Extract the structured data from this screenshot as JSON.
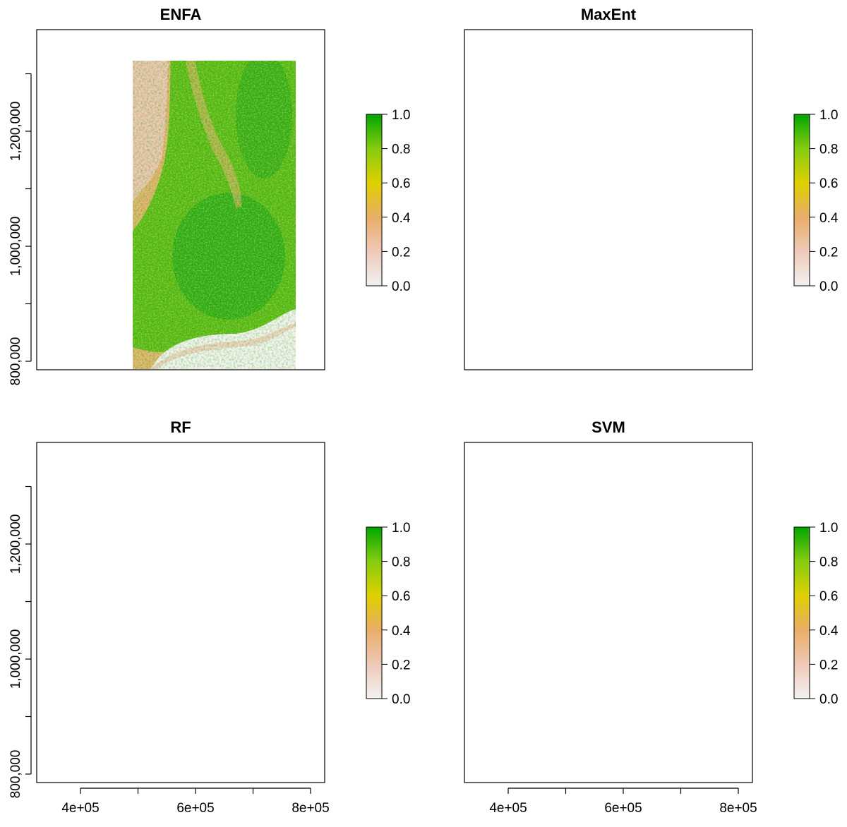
{
  "panels": [
    {
      "title": "ENFA",
      "palette": "enfa",
      "show_y_axis": true,
      "show_x_axis": false
    },
    {
      "title": "MaxEnt",
      "palette": "maxent",
      "show_y_axis": false,
      "show_x_axis": false
    },
    {
      "title": "RF",
      "palette": "rf",
      "show_y_axis": true,
      "show_x_axis": true
    },
    {
      "title": "SVM",
      "palette": "svm",
      "show_y_axis": false,
      "show_x_axis": true
    }
  ],
  "y_axis_ticks": [
    "800,000",
    "1,000,000",
    "1,200,000"
  ],
  "y_axis_minor_ticks": 6,
  "x_axis_ticks": [
    "4e+05",
    "6e+05",
    "8e+05"
  ],
  "legend": {
    "ticks": [
      "0.0",
      "0.2",
      "0.4",
      "0.6",
      "0.8",
      "1.0"
    ],
    "colors": [
      "#f2f2f2",
      "#eec9b8",
      "#e9ad68",
      "#dfd000",
      "#86cc10",
      "#00a600"
    ]
  },
  "colors": {
    "no_data": "#f4f2f2",
    "low": "#eec3b1",
    "mid": "#e2b16a",
    "yellow": "#d6d000",
    "green": "#5cba12",
    "dark_green": "#14a014"
  }
}
